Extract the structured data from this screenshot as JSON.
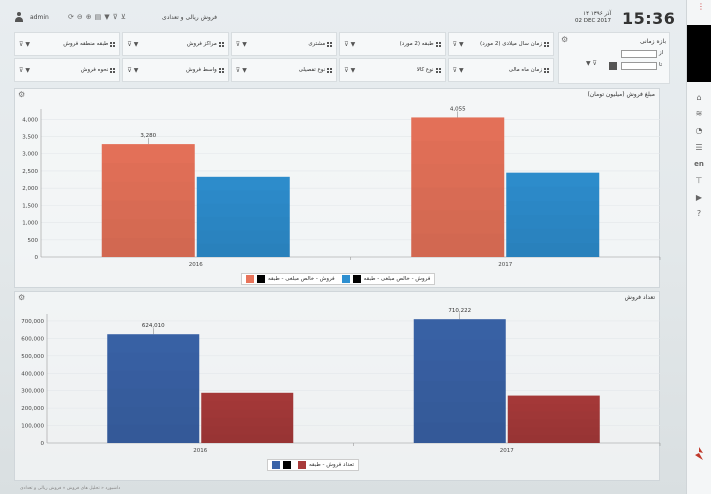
{
  "header": {
    "user_name": "admin",
    "app_title": "فروش ریالی و تعدادی",
    "date_fa": "۱۴ آذر ۱۳۹۶",
    "date_en": "02 DEC 2017",
    "time": "15:36"
  },
  "filters": [
    {
      "label": "زمان سال میلادی (2 مورد)"
    },
    {
      "label": "طبقه (2 مورد)"
    },
    {
      "label": "مشتری"
    },
    {
      "label": "مراکز فروش"
    },
    {
      "label": "طبقه منطقه فروش"
    },
    {
      "label": "زمان ماه مالی"
    },
    {
      "label": "نوع کالا"
    },
    {
      "label": "نوع تفصیلی"
    },
    {
      "label": "واسط فروش"
    },
    {
      "label": "نحوه فروش"
    }
  ],
  "time_panel": {
    "title": "بازه زمانی",
    "from_label": "از",
    "to_label": "تا"
  },
  "colors": {
    "orange": "#e8735a",
    "blue": "#2e8fd0",
    "navy": "#3a63a8",
    "red": "#a83a3a"
  },
  "chart_data": [
    {
      "type": "bar",
      "title": "مبلغ فروش (میلیون تومان)",
      "categories": [
        "2016",
        "2017"
      ],
      "series": [
        {
          "name": "فروش - خالص مبلغی - طبقه",
          "values": [
            3280,
            4055
          ],
          "labels": [
            "3,280",
            "4,055"
          ]
        },
        {
          "name": "فروش - خالص مبلغی - طبقه",
          "values": [
            2330,
            2450
          ],
          "labels": [
            "",
            ""
          ]
        }
      ],
      "ylim": [
        0,
        4300
      ],
      "yticks": [
        "0",
        "500",
        "1,000",
        "1,500",
        "2,000",
        "2,500",
        "3,000",
        "3,500",
        "4,000"
      ],
      "ytick_values": [
        0,
        500,
        1000,
        1500,
        2000,
        2500,
        3000,
        3500,
        4000
      ]
    },
    {
      "type": "bar",
      "title": "تعداد فروش",
      "categories": [
        "2016",
        "2017"
      ],
      "series": [
        {
          "name": "تعداد فروش - طبقه",
          "values": [
            624010,
            710222
          ],
          "labels": [
            "624,010",
            "710,222"
          ]
        },
        {
          "name": "تعداد فروش - طبقه",
          "values": [
            288000,
            272000
          ],
          "labels": [
            "",
            ""
          ]
        }
      ],
      "ylim": [
        0,
        740000
      ],
      "yticks": [
        "0",
        "100,000",
        "200,000",
        "300,000",
        "400,000",
        "500,000",
        "600,000",
        "700,000"
      ],
      "ytick_values": [
        0,
        100000,
        200000,
        300000,
        400000,
        500000,
        600000,
        700000
      ]
    }
  ],
  "footer": {
    "breadcrumb": "داشبورد « تحلیل های فروش « فروش ریالی و تعدادی"
  }
}
